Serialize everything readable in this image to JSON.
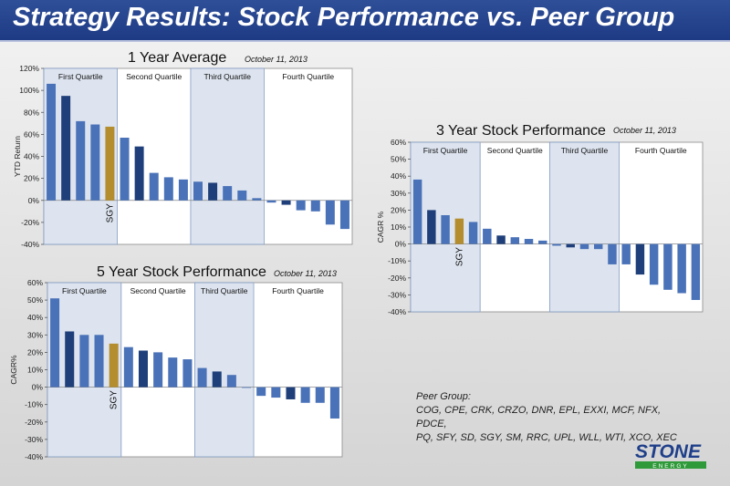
{
  "page_title": "Strategy Results:  Stock Performance vs. Peer Group",
  "colors": {
    "bar": "#4a72b8",
    "bar_dark": "#1f3f7a",
    "sgy_bar": "#b48d2e",
    "shade": "#dde4ef",
    "title_bg": "#23418a"
  },
  "chart_data": [
    {
      "type": "bar",
      "title": "1 Year Average",
      "date": "October 11, 2013",
      "ylabel": "YTD Return",
      "ylim": [
        -40,
        120
      ],
      "yticks": [
        "120%",
        "100%",
        "80%",
        "60%",
        "40%",
        "20%",
        "0%",
        "-20%",
        "-40%"
      ],
      "values": [
        106,
        95,
        72,
        69,
        67,
        57,
        49,
        25,
        21,
        19,
        17,
        16,
        13,
        9,
        2,
        -2,
        -4,
        -9,
        -10,
        -22,
        -26
      ],
      "sgy_index": 4,
      "sgy_label": "SGY",
      "quartiles": [
        {
          "label": "First Quartile",
          "start": 0,
          "end": 5,
          "shaded": true
        },
        {
          "label": "Second Quartile",
          "start": 5,
          "end": 10,
          "shaded": false
        },
        {
          "label": "Third Quartile",
          "start": 10,
          "end": 15,
          "shaded": true
        },
        {
          "label": "Fourth Quartile",
          "start": 15,
          "end": 21,
          "shaded": false
        }
      ]
    },
    {
      "type": "bar",
      "title": "3 Year Stock Performance",
      "date": "October 11, 2013",
      "ylabel": "CAGR %",
      "ylim": [
        -40,
        60
      ],
      "yticks": [
        "60%",
        "50%",
        "40%",
        "30%",
        "20%",
        "10%",
        "0%",
        "-10%",
        "-20%",
        "-30%",
        "-40%"
      ],
      "values": [
        38,
        20,
        17,
        15,
        13,
        9,
        5,
        4,
        3,
        2,
        -1,
        -2,
        -3,
        -3,
        -12,
        -12,
        -18,
        -24,
        -27,
        -29,
        -33
      ],
      "sgy_index": 3,
      "sgy_label": "SGY",
      "quartiles": [
        {
          "label": "First Quartile",
          "start": 0,
          "end": 5,
          "shaded": true
        },
        {
          "label": "Second Quartile",
          "start": 5,
          "end": 10,
          "shaded": false
        },
        {
          "label": "Third Quartile",
          "start": 10,
          "end": 15,
          "shaded": true
        },
        {
          "label": "Fourth Quartile",
          "start": 15,
          "end": 21,
          "shaded": false
        }
      ]
    },
    {
      "type": "bar",
      "title": "5 Year Stock Performance",
      "date": "October 11, 2013",
      "ylabel": "CAGR%",
      "ylim": [
        -40,
        60
      ],
      "yticks": [
        "60%",
        "50%",
        "40%",
        "30%",
        "20%",
        "10%",
        "0%",
        "-10%",
        "-20%",
        "-30%",
        "-40%"
      ],
      "values": [
        51,
        32,
        30,
        30,
        25,
        23,
        21,
        20,
        17,
        16,
        11,
        9,
        7,
        0,
        -5,
        -6,
        -7,
        -9,
        -9,
        -18
      ],
      "sgy_index": 4,
      "sgy_label": "SGY",
      "quartiles": [
        {
          "label": "First Quartile",
          "start": 0,
          "end": 5,
          "shaded": true
        },
        {
          "label": "Second Quartile",
          "start": 5,
          "end": 10,
          "shaded": false
        },
        {
          "label": "Third Quartile",
          "start": 10,
          "end": 14,
          "shaded": true
        },
        {
          "label": "Fourth Quartile",
          "start": 14,
          "end": 20,
          "shaded": false
        }
      ]
    }
  ],
  "peer_group": {
    "label": "Peer Group:",
    "line1": "COG, CPE, CRK, CRZO, DNR, EPL, EXXI, MCF, NFX, PDCE,",
    "line2": "PQ, SFY, SD, SGY, SM, RRC, UPL, WLL, WTI, XCO, XEC"
  },
  "logo": {
    "name": "STONE",
    "sub": "ENERGY"
  }
}
